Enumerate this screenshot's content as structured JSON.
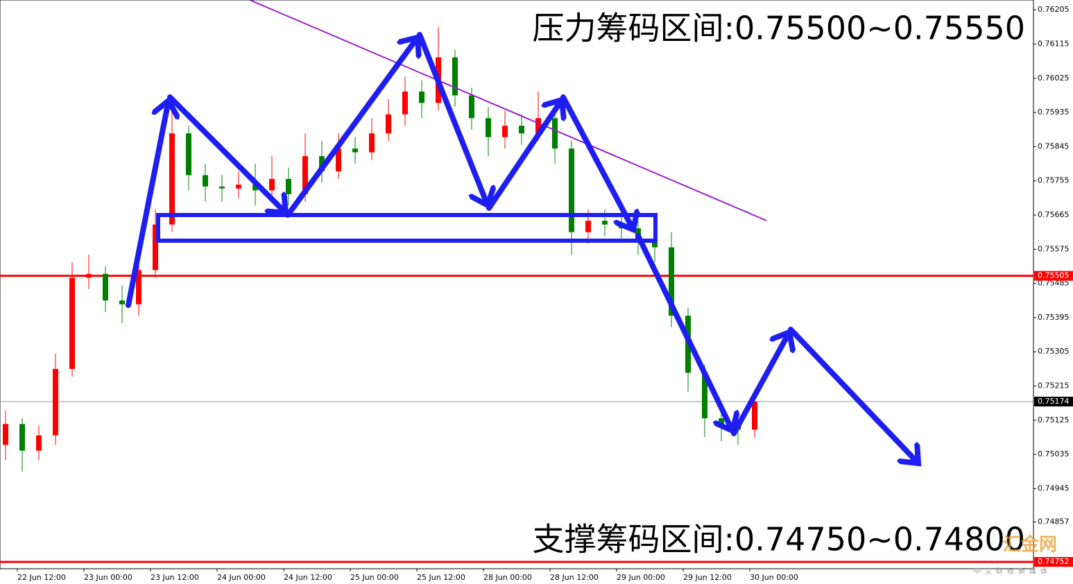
{
  "chart_data": {
    "type": "candlestick",
    "annotations": [
      "压力筹码区间:0.75500~0.75550",
      "支撑筹码区间:0.74750~0.74800"
    ],
    "watermark": [
      "汇金网",
      "中文财经新媒体"
    ],
    "xticks": [
      "22 Jun 12:00",
      "23 Jun 00:00",
      "23 Jun 12:00",
      "24 Jun 00:00",
      "24 Jun 12:00",
      "25 Jun 00:00",
      "25 Jun 12:00",
      "28 Jun 00:00",
      "28 Jun 12:00",
      "29 Jun 00:00",
      "29 Jun 12:00",
      "30 Jun 00:00"
    ],
    "ylim": [
      0.74734,
      0.76231
    ],
    "yticks": [
      0.76205,
      0.76115,
      0.76025,
      0.75935,
      0.75845,
      0.75755,
      0.75665,
      0.75575,
      0.75485,
      0.75395,
      0.75305,
      0.75215,
      0.75125,
      0.75035,
      0.74945,
      0.74857
    ],
    "levels": [
      {
        "value": 0.75505,
        "color": "#ff0000"
      },
      {
        "value": 0.75174,
        "color": "#000000"
      },
      {
        "value": 0.74752,
        "color": "#ff0000"
      }
    ],
    "up_color": "#ff0000",
    "down_color": "#008000",
    "open": [
      0.7506,
      0.75115,
      0.75045,
      0.75085,
      0.7526,
      0.755,
      0.7551,
      0.7544,
      0.7543,
      0.7552,
      0.7564,
      0.7588,
      0.7577,
      0.7574,
      0.75735,
      0.75745,
      0.7573,
      0.7576,
      0.7572,
      0.7582,
      0.7578,
      0.7584,
      0.7583,
      0.7588,
      0.7593,
      0.7599,
      0.7596,
      0.7608,
      0.7598,
      0.7592,
      0.7587,
      0.759,
      0.7588,
      0.7592,
      0.7584,
      0.7562,
      0.7565,
      0.7564,
      0.7563,
      0.756,
      0.7558,
      0.754,
      0.7525,
      0.7513,
      0.7511,
      0.751
    ],
    "high": [
      0.7515,
      0.7513,
      0.7511,
      0.753,
      0.7554,
      0.7556,
      0.7553,
      0.7548,
      0.7556,
      0.7568,
      0.7596,
      0.759,
      0.758,
      0.7577,
      0.7578,
      0.758,
      0.7582,
      0.7579,
      0.7588,
      0.7586,
      0.7588,
      0.7587,
      0.7592,
      0.7597,
      0.7603,
      0.7602,
      0.7616,
      0.761,
      0.76,
      0.7595,
      0.7594,
      0.7593,
      0.7599,
      0.7594,
      0.7586,
      0.7568,
      0.7568,
      0.7566,
      0.7565,
      0.7564,
      0.7562,
      0.7542,
      0.7527,
      0.7516,
      0.7513,
      0.7519
    ],
    "low": [
      0.7502,
      0.7499,
      0.7502,
      0.7506,
      0.7524,
      0.7547,
      0.7541,
      0.7538,
      0.754,
      0.755,
      0.7562,
      0.7573,
      0.757,
      0.757,
      0.7571,
      0.7569,
      0.757,
      0.7569,
      0.757,
      0.7575,
      0.7576,
      0.758,
      0.7581,
      0.7586,
      0.759,
      0.7592,
      0.7594,
      0.7595,
      0.7589,
      0.7582,
      0.7584,
      0.7585,
      0.7586,
      0.758,
      0.7556,
      0.7559,
      0.7561,
      0.756,
      0.7556,
      0.7554,
      0.7537,
      0.752,
      0.7508,
      0.7507,
      0.7506,
      0.7508
    ],
    "close": [
      0.75115,
      0.75045,
      0.75085,
      0.7526,
      0.755,
      0.7551,
      0.7544,
      0.7543,
      0.7552,
      0.7564,
      0.7588,
      0.7577,
      0.7574,
      0.75735,
      0.75745,
      0.7573,
      0.7576,
      0.7572,
      0.7582,
      0.7578,
      0.7584,
      0.7583,
      0.7588,
      0.7593,
      0.7599,
      0.7596,
      0.7608,
      0.7598,
      0.7592,
      0.7587,
      0.759,
      0.7588,
      0.7592,
      0.7584,
      0.7562,
      0.7565,
      0.7564,
      0.7563,
      0.756,
      0.7558,
      0.754,
      0.7525,
      0.7513,
      0.7511,
      0.751,
      0.75174
    ]
  }
}
